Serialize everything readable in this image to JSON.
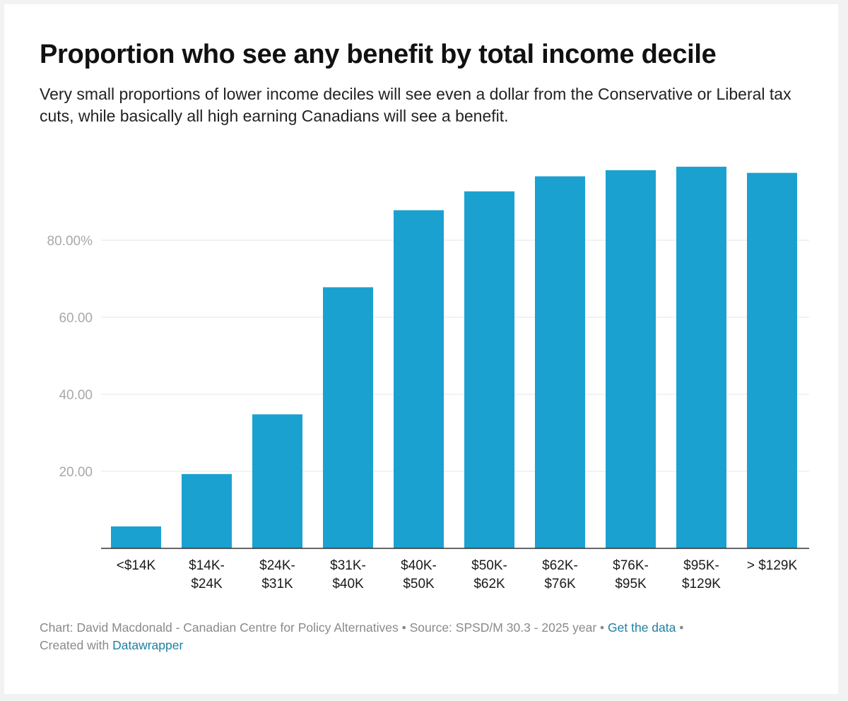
{
  "header": {
    "title": "Proportion who see any benefit by total income decile",
    "subtitle": "Very small proportions of lower income deciles will see even a dollar from the Conservative or Liberal tax cuts, while basically all high earning Canadians will see a benefit."
  },
  "footer": {
    "chart_credit": "Chart: David Macdonald - Canadian Centre for Policy Alternatives",
    "separator": " • ",
    "source": "Source: SPSD/M 30.3 - 2025 year",
    "get_data_link": "Get the data",
    "created_with": "Created with ",
    "datawrapper_link": "Datawrapper"
  },
  "colors": {
    "bar": "#1aa1d0",
    "grid": "#e6e6e6",
    "baseline": "#333333"
  },
  "chart_data": {
    "type": "bar",
    "title": "Proportion who see any benefit by total income decile",
    "xlabel": "",
    "ylabel": "",
    "ylim": [
      0,
      100
    ],
    "yticks": [
      {
        "value": 80,
        "label": "80.00%"
      },
      {
        "value": 60,
        "label": "60.00"
      },
      {
        "value": 40,
        "label": "40.00"
      },
      {
        "value": 20,
        "label": "20.00"
      }
    ],
    "categories": [
      [
        "<$14K"
      ],
      [
        "$14K-",
        "$24K"
      ],
      [
        "$24K-",
        "$31K"
      ],
      [
        "$31K-",
        "$40K"
      ],
      [
        "$40K-",
        "$50K"
      ],
      [
        "$50K-",
        "$62K"
      ],
      [
        "$62K-",
        "$76K"
      ],
      [
        "$76K-",
        "$95K"
      ],
      [
        "$95K-",
        "$129K"
      ],
      [
        "> $129K"
      ]
    ],
    "values": [
      5.7,
      19.3,
      34.8,
      67.8,
      87.8,
      92.7,
      96.6,
      98.2,
      99.1,
      97.5
    ],
    "grid": true
  }
}
